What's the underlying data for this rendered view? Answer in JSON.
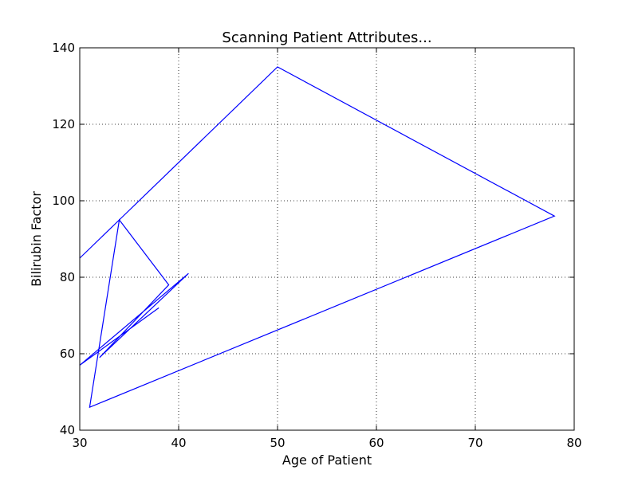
{
  "chart_data": {
    "type": "line",
    "title": "Scanning Patient Attributes...",
    "xlabel": "Age of Patient",
    "ylabel": "Bilirubin Factor",
    "xlim": [
      30,
      80
    ],
    "ylim": [
      40,
      140
    ],
    "xticks": [
      30,
      40,
      50,
      60,
      70,
      80
    ],
    "yticks": [
      40,
      60,
      80,
      100,
      120,
      140
    ],
    "grid": true,
    "series": [
      {
        "color": "#0000ff",
        "x": [
          30,
          34,
          50,
          78,
          31,
          34,
          39,
          32,
          41,
          30,
          38
        ],
        "y": [
          85,
          95,
          135,
          96,
          46,
          95,
          78,
          59,
          81,
          57,
          72
        ]
      }
    ]
  }
}
